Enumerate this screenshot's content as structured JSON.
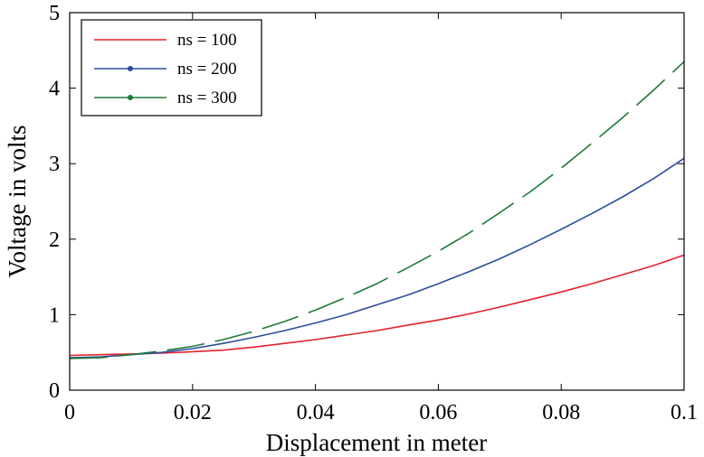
{
  "chart_data": {
    "type": "line",
    "xlabel": "Displacement in meter",
    "ylabel": "Voltage in volts",
    "xlim": [
      0,
      0.1
    ],
    "ylim": [
      0,
      5
    ],
    "xticks": [
      0,
      0.02,
      0.04,
      0.06,
      0.08,
      0.1
    ],
    "xtick_labels": [
      "0",
      "0.02",
      "0.04",
      "0.06",
      "0.08",
      "0.1"
    ],
    "yticks": [
      0,
      1,
      2,
      3,
      4,
      5
    ],
    "ytick_labels": [
      "0",
      "1",
      "2",
      "3",
      "4",
      "5"
    ],
    "grid": false,
    "legend_position": "top-left",
    "series": [
      {
        "name": "ns = 100",
        "color": "#e3212b",
        "line_style": "solid",
        "x": [
          0,
          0.005,
          0.01,
          0.015,
          0.02,
          0.025,
          0.03,
          0.035,
          0.04,
          0.045,
          0.05,
          0.055,
          0.06,
          0.065,
          0.07,
          0.075,
          0.08,
          0.085,
          0.09,
          0.095,
          0.1
        ],
        "y": [
          0.46,
          0.47,
          0.48,
          0.49,
          0.51,
          0.53,
          0.57,
          0.62,
          0.67,
          0.73,
          0.79,
          0.86,
          0.93,
          1.01,
          1.1,
          1.2,
          1.3,
          1.41,
          1.53,
          1.65,
          1.79
        ]
      },
      {
        "name": "ns = 200",
        "color": "#2e4b9b",
        "line_style": "solid",
        "x": [
          0,
          0.005,
          0.01,
          0.015,
          0.02,
          0.025,
          0.03,
          0.035,
          0.04,
          0.045,
          0.05,
          0.055,
          0.06,
          0.065,
          0.07,
          0.075,
          0.08,
          0.085,
          0.09,
          0.095,
          0.1
        ],
        "y": [
          0.43,
          0.44,
          0.47,
          0.5,
          0.55,
          0.62,
          0.7,
          0.79,
          0.89,
          1.0,
          1.13,
          1.26,
          1.41,
          1.57,
          1.74,
          1.93,
          2.13,
          2.34,
          2.56,
          2.8,
          3.07
        ]
      },
      {
        "name": "ns = 300",
        "color": "#1e7a3a",
        "line_style": "dashed",
        "x": [
          0,
          0.005,
          0.01,
          0.015,
          0.02,
          0.025,
          0.03,
          0.035,
          0.04,
          0.045,
          0.05,
          0.055,
          0.06,
          0.065,
          0.07,
          0.075,
          0.08,
          0.085,
          0.09,
          0.095,
          0.1
        ],
        "y": [
          0.42,
          0.43,
          0.47,
          0.52,
          0.58,
          0.67,
          0.78,
          0.91,
          1.06,
          1.23,
          1.41,
          1.62,
          1.84,
          2.08,
          2.35,
          2.63,
          2.94,
          3.27,
          3.61,
          3.97,
          4.35
        ]
      }
    ]
  }
}
